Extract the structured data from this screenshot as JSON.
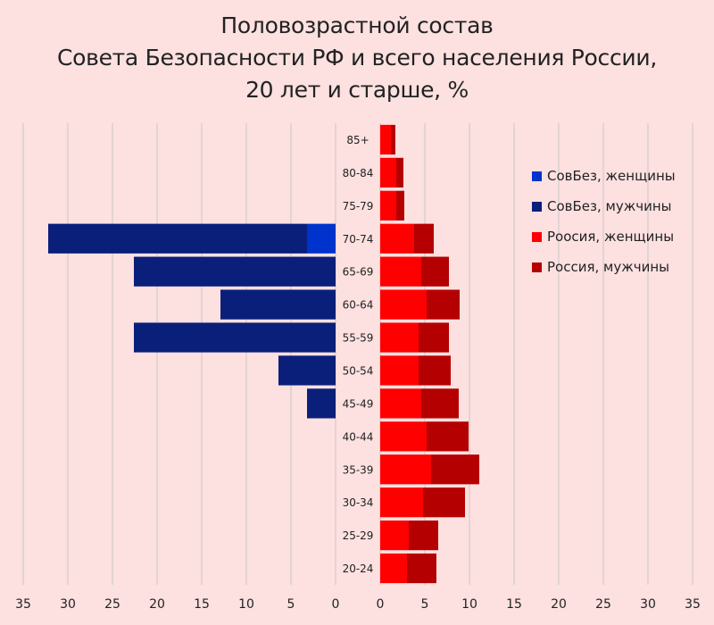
{
  "colors": {
    "background": "#fde0e0",
    "sb_women": "#0033cc",
    "sb_men": "#0a1f7a",
    "ru_women": "#ff0000",
    "ru_men": "#b40000",
    "grid": "#c8c8c8"
  },
  "chart_data": {
    "type": "bar",
    "subtype": "population-pyramid",
    "title": [
      "Половозрастной состав",
      "Совета Безопасности РФ и всего населения России,",
      "20 лет и старше, %"
    ],
    "categories": [
      "85+",
      "80-84",
      "75-79",
      "70-74",
      "65-69",
      "60-64",
      "55-59",
      "50-54",
      "45-49",
      "40-44",
      "35-39",
      "30-34",
      "25-29",
      "20-24"
    ],
    "left_axis": {
      "ticks": [
        35,
        30,
        25,
        20,
        15,
        10,
        5,
        0
      ],
      "range": [
        0,
        35
      ]
    },
    "right_axis": {
      "ticks": [
        0,
        5,
        10,
        15,
        20,
        25,
        30,
        35
      ],
      "range": [
        0,
        35
      ]
    },
    "grid": true,
    "legend_position": "right",
    "left_stacked": true,
    "right_stacked": true,
    "series": [
      {
        "name": "СовБез, женщины",
        "side": "left",
        "color_key": "sb_women",
        "values": [
          0,
          0,
          0,
          3.2,
          0,
          0,
          0,
          0,
          0,
          0,
          0,
          0,
          0,
          0
        ]
      },
      {
        "name": "СовБез, мужчины",
        "side": "left",
        "color_key": "sb_men",
        "values": [
          0,
          0,
          0,
          29.0,
          22.6,
          12.9,
          22.6,
          6.4,
          3.2,
          0,
          0,
          0,
          0,
          0
        ]
      },
      {
        "name": "Роосия, женщины",
        "side": "right",
        "color_key": "ru_women",
        "values": [
          1.2,
          1.8,
          1.8,
          3.8,
          4.6,
          5.2,
          4.3,
          4.3,
          4.6,
          5.2,
          5.7,
          4.8,
          3.2,
          3.0
        ]
      },
      {
        "name": "Россия, мужчины",
        "side": "right",
        "color_key": "ru_men",
        "values": [
          0.5,
          0.8,
          0.9,
          2.2,
          3.1,
          3.7,
          3.4,
          3.6,
          4.2,
          4.7,
          5.4,
          4.7,
          3.3,
          3.3
        ]
      }
    ]
  }
}
